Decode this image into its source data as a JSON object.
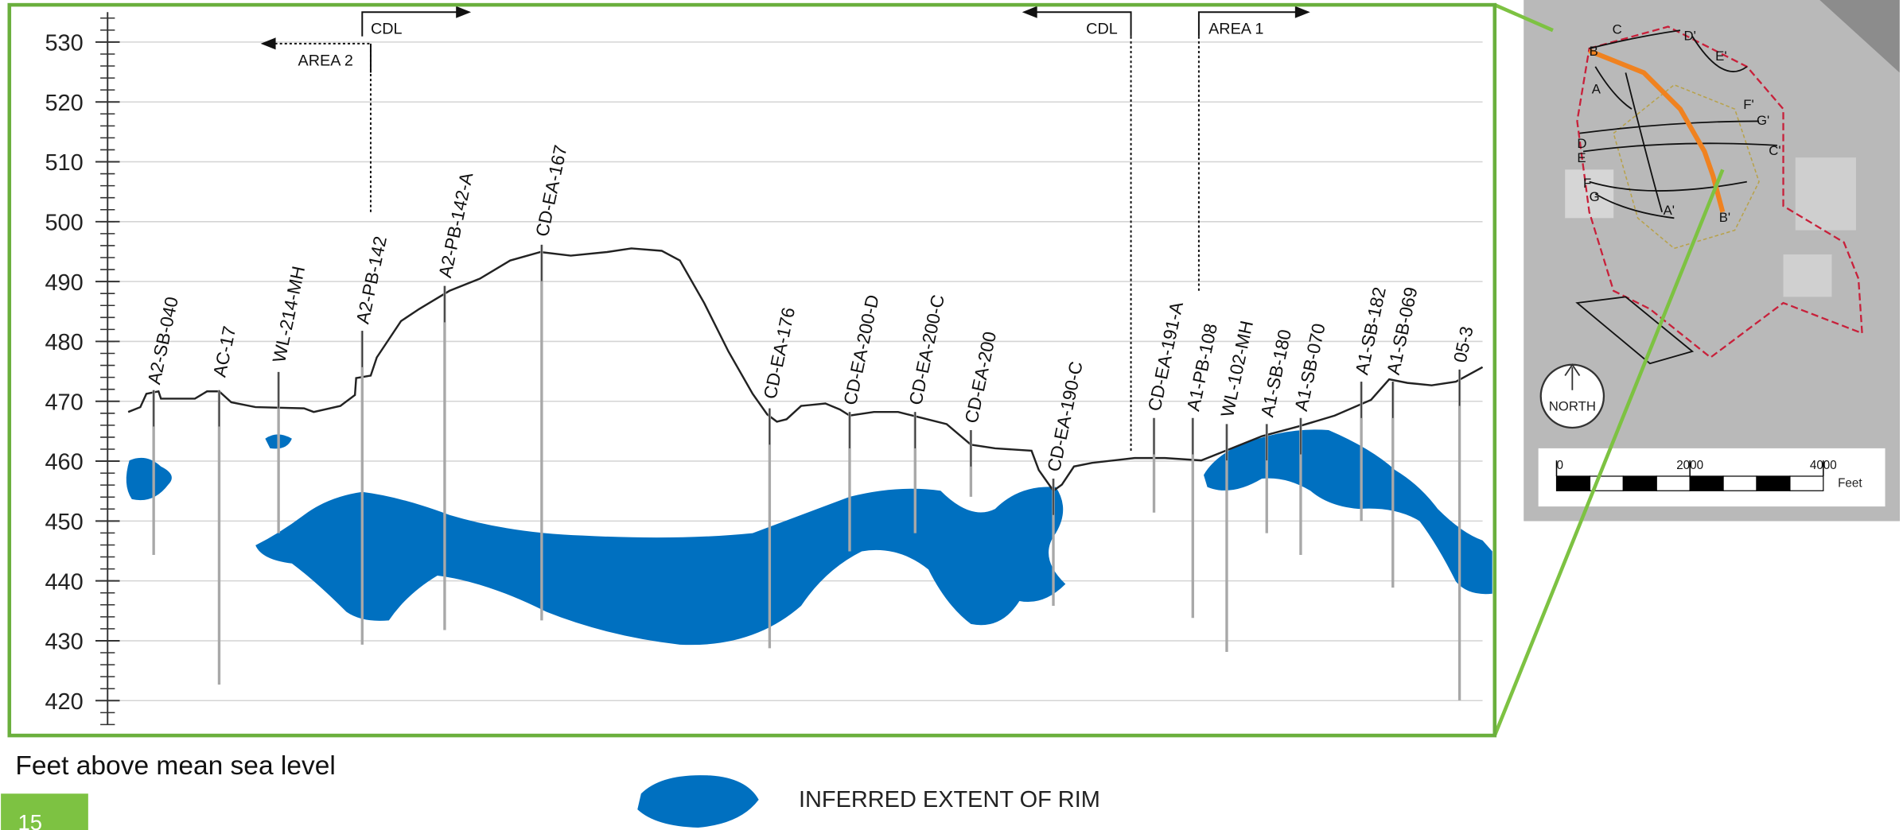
{
  "section": {
    "ylim": [
      416,
      535
    ],
    "yticks": [
      420,
      430,
      440,
      450,
      460,
      470,
      480,
      490,
      500,
      510,
      520,
      530
    ],
    "y_label": "Feet above mean sea level",
    "borings": [
      "A2-SB-040",
      "AC-17",
      "WL-214-MH",
      "A2-PB-142",
      "A2-PB-142-A",
      "CD-EA-167",
      "CD-EA-176",
      "CD-EA-200-D",
      "CD-EA-200-C",
      "CD-EA-200",
      "CD-EA-190-C",
      "CD-EA-191-A",
      "A1-PB-108",
      "WL-102-MH",
      "A1-SB-180",
      "A1-SB-070",
      "A1-SB-182",
      "A1-SB-069",
      "05-3"
    ],
    "zones": {
      "cdl_left": "CDL",
      "area_2": "AREA 2",
      "cdl_right": "CDL",
      "area_1": "AREA 1"
    }
  },
  "legend": {
    "label": "INFERRED EXTENT OF RIM"
  },
  "page_number": "15",
  "map": {
    "north": "NORTH",
    "scale_ticks": [
      0,
      2000,
      4000
    ],
    "scale_unit": "Feet",
    "section_letters": [
      "C",
      "D'",
      "E'",
      "B",
      "A",
      "D",
      "E",
      "F",
      "G",
      "F'",
      "G'",
      "C'",
      "A'",
      "B'"
    ]
  }
}
